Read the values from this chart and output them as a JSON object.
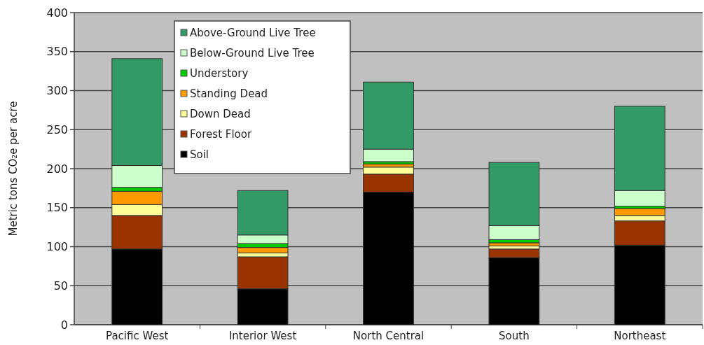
{
  "chart_data": {
    "type": "bar",
    "stacked": true,
    "ylabel": "Metric tons CO₂e per acre",
    "categories": [
      "Pacific West",
      "Interior West",
      "North Central",
      "South",
      "Northeast"
    ],
    "series": [
      {
        "name": "Soil",
        "color": "#000000",
        "values": [
          97,
          46,
          170,
          86,
          102
        ]
      },
      {
        "name": "Forest Floor",
        "color": "#993300",
        "values": [
          43,
          41,
          23,
          11,
          31
        ]
      },
      {
        "name": "Down Dead",
        "color": "#ffff99",
        "values": [
          14,
          5,
          9,
          4,
          7
        ]
      },
      {
        "name": "Standing Dead",
        "color": "#ff9900",
        "values": [
          17,
          7,
          4,
          4,
          9
        ]
      },
      {
        "name": "Understory",
        "color": "#00cc00",
        "values": [
          5,
          5,
          3,
          4,
          3
        ]
      },
      {
        "name": "Below-Ground Live Tree",
        "color": "#ccffcc",
        "values": [
          28,
          11,
          16,
          18,
          20
        ]
      },
      {
        "name": "Above-Ground Live Tree",
        "color": "#339966",
        "values": [
          137,
          57,
          86,
          81,
          108
        ]
      }
    ],
    "ylim": [
      0,
      400
    ],
    "yticks": [
      0,
      50,
      100,
      150,
      200,
      250,
      300,
      350,
      400
    ],
    "grid": "y",
    "legend": "top left"
  }
}
